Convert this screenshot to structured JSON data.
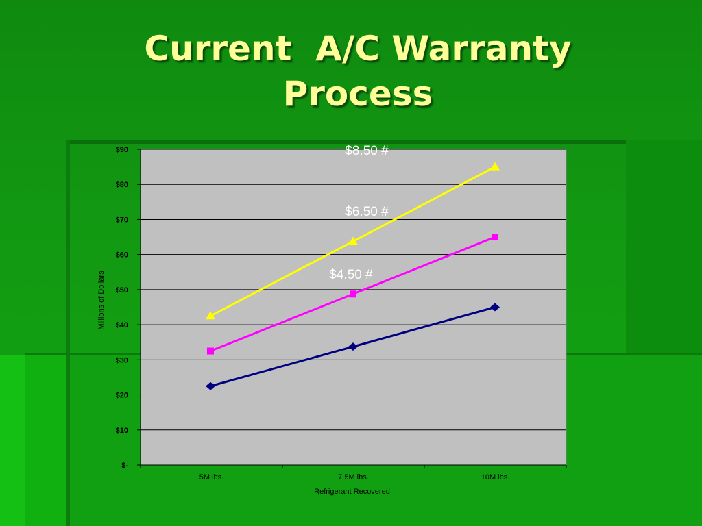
{
  "slide": {
    "title_line1": "Current  A/C Warranty",
    "title_line2": "Process"
  },
  "colors": {
    "title": "#ffff99",
    "plot_background": "#c0c0c0",
    "series_low": "#000080",
    "series_mid": "#ff00ff",
    "series_high": "#ffff00"
  },
  "chart_data": {
    "type": "line",
    "categories": [
      "5M lbs.",
      "7.5M lbs.",
      "10M lbs."
    ],
    "series": [
      {
        "name": "$4.50 #",
        "values": [
          22.5,
          33.75,
          45
        ],
        "color": "#000080",
        "marker": "diamond"
      },
      {
        "name": "$6.50 #",
        "values": [
          32.5,
          48.75,
          65
        ],
        "color": "#ff00ff",
        "marker": "square"
      },
      {
        "name": "$8.50 #",
        "values": [
          42.5,
          63.75,
          85
        ],
        "color": "#ffff00",
        "marker": "triangle"
      }
    ],
    "xlabel": "Refrigerant Recovered",
    "ylabel": "Millions of Dollars",
    "ylim": [
      0,
      90
    ],
    "yticks": [
      0,
      10,
      20,
      30,
      40,
      50,
      60,
      70,
      80,
      90
    ],
    "ytick_labels": [
      "$-",
      "$10",
      "$20",
      "$30",
      "$40",
      "$50",
      "$60",
      "$70",
      "$80",
      "$90"
    ],
    "grid": true,
    "legend": "inline labels above each line"
  }
}
